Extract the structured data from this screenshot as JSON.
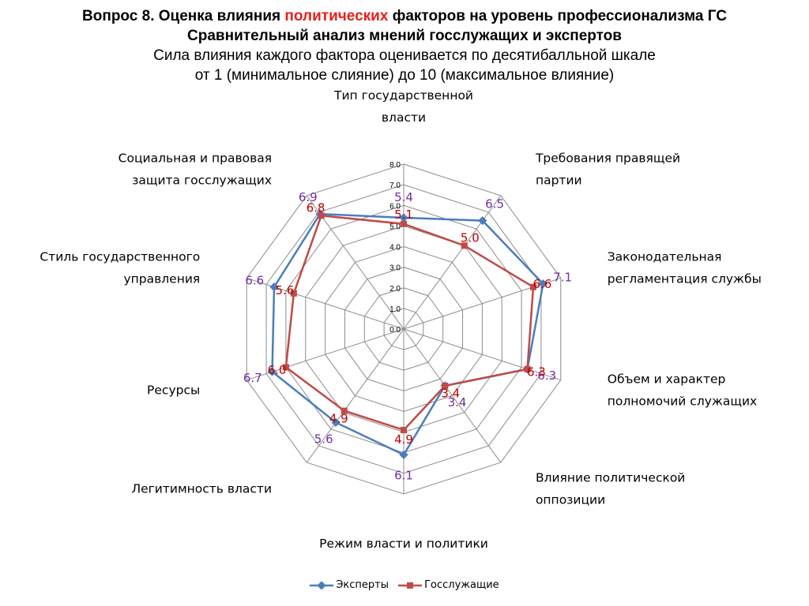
{
  "header": {
    "line1_prefix": "Вопрос 8. Оценка влияния ",
    "line1_highlight": "политических",
    "line1_suffix": " факторов на уровень профессионализма ГС",
    "line2": "Сравнительный анализ мнений госслужащих и экспертов",
    "line3": "Сила влияния каждого фактора оценивается по десятибалльной шкале",
    "line4": "от 1 (минимальное слияние) до 10 (максимальное влияние)"
  },
  "chart_data": {
    "type": "radar",
    "categories": [
      "Тип государственной власти",
      "Требования правящей партии",
      "Законодательная регламентация службы",
      "Объем и характер полномочий служащих",
      "Влияние политической оппозиции",
      "Режим власти и политики",
      "Легитимность власти",
      "Ресурсы",
      "Стиль государственного управления",
      "Социальная и правовая защита госслужащих"
    ],
    "category_lines": [
      [
        "Тип государственной",
        "власти"
      ],
      [
        "Требования правящей",
        "партии"
      ],
      [
        "Законодательная",
        "регламентация службы"
      ],
      [
        "Объем и характер",
        "полномочий служащих"
      ],
      [
        "Влияние политической",
        "оппозиции"
      ],
      [
        "Режим власти и политики"
      ],
      [
        "Легитимность власти"
      ],
      [
        "Ресурсы"
      ],
      [
        "Стиль государственного",
        "управления"
      ],
      [
        "Социальная и правовая",
        "защита госслужащих"
      ]
    ],
    "series": [
      {
        "name": "Эксперты",
        "color": "#4a7ebb",
        "values": [
          5.4,
          6.5,
          7.1,
          6.3,
          3.4,
          6.1,
          5.6,
          6.7,
          6.6,
          6.9
        ]
      },
      {
        "name": "Госслужащие",
        "color": "#be4b48",
        "values": [
          5.1,
          5.0,
          6.6,
          6.3,
          3.4,
          4.9,
          4.9,
          6.0,
          5.6,
          6.8
        ]
      }
    ],
    "rlim": [
      0,
      8
    ],
    "rticks": [
      "0.0",
      "1.0",
      "2.0",
      "3.0",
      "4.0",
      "5.0",
      "6.0",
      "7.0",
      "8.0"
    ],
    "legend": "bottom"
  }
}
